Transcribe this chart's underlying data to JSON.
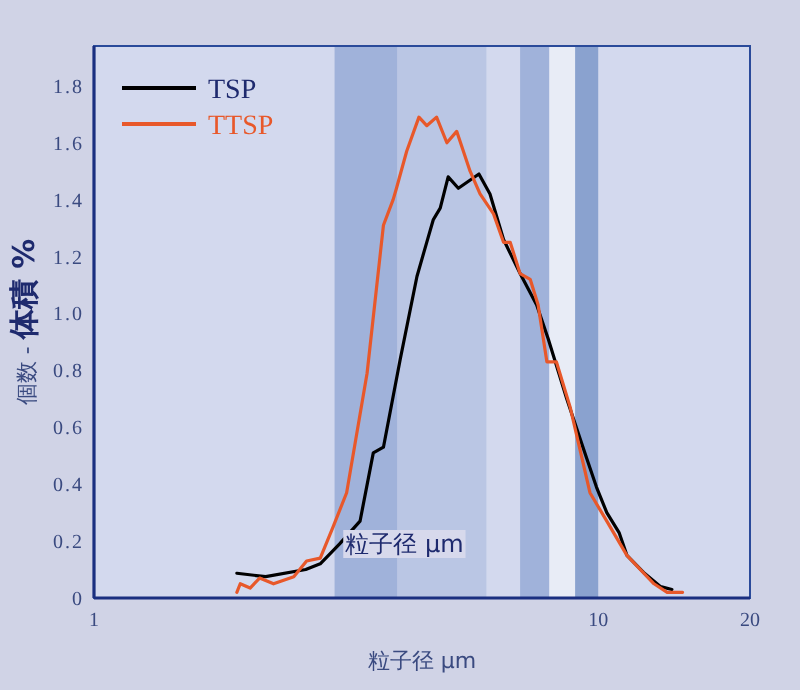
{
  "chart_data": {
    "type": "line",
    "xlabel": "粒子径 μm",
    "ylabel": "個数 - **体積 %**",
    "log": "x",
    "xlim": [
      1,
      20
    ],
    "xticks": [
      1,
      10,
      20
    ],
    "ylim": [
      0,
      1.94
    ],
    "yticks": [
      0,
      0.2,
      0.4,
      0.6,
      0.8,
      {
        "value": 1,
        "label": "1.0"
      },
      1.2,
      1.4,
      1.6,
      1.8
    ],
    "legend": "top left",
    "grid": false,
    "marker": "none",
    "line_style": "solid",
    "annotations": [
      "粒子径 μm"
    ],
    "bands": [
      {
        "axis": "x",
        "from": 3,
        "to": 4,
        "color": "#a0b2da"
      },
      {
        "axis": "x",
        "from": 4,
        "to": 6,
        "color": "#bac6e4"
      },
      {
        "axis": "x",
        "from": 7,
        "to": 8,
        "color": "#a0b2da"
      },
      {
        "axis": "x",
        "from": 8,
        "to": 9,
        "color": "#e8ecf6"
      },
      {
        "axis": "x",
        "from": 9,
        "to": 10,
        "color": "#8aa2cf"
      }
    ],
    "series": [
      {
        "name": "TSP",
        "color": "#000000",
        "x": [
          1.92,
          2.19,
          2.63,
          2.81,
          3.07,
          3.37,
          3.58,
          3.75,
          4.05,
          4.37,
          4.57,
          4.71,
          4.86,
          5.04,
          5.28,
          5.8,
          6.1,
          6.49,
          7.0,
          7.55,
          7.96,
          8.66,
          9.49,
          9.92,
          10.4,
          11.0,
          11.4,
          12.3,
          13.3,
          14.0
        ],
        "values": [
          0.087,
          0.075,
          0.1,
          0.12,
          0.19,
          0.27,
          0.51,
          0.53,
          0.84,
          1.13,
          1.25,
          1.33,
          1.37,
          1.48,
          1.44,
          1.49,
          1.42,
          1.26,
          1.14,
          1.03,
          0.91,
          0.7,
          0.49,
          0.39,
          0.3,
          0.23,
          0.15,
          0.09,
          0.04,
          0.03
        ]
      },
      {
        "name": "TTSP",
        "color": "#e8582a",
        "x": [
          1.92,
          1.95,
          2.04,
          2.13,
          2.27,
          2.49,
          2.64,
          2.81,
          2.98,
          3.17,
          3.48,
          3.75,
          3.92,
          3.98,
          4.17,
          4.41,
          4.57,
          4.78,
          5.01,
          5.24,
          5.57,
          5.83,
          6.2,
          6.49,
          6.69,
          7.0,
          7.33,
          7.6,
          7.91,
          8.26,
          8.8,
          9.63,
          10.4,
          11.4,
          12.9,
          13.7,
          14.7
        ],
        "values": [
          0.02,
          0.05,
          0.035,
          0.07,
          0.05,
          0.075,
          0.13,
          0.14,
          0.25,
          0.37,
          0.79,
          1.31,
          1.4,
          1.44,
          1.57,
          1.69,
          1.66,
          1.69,
          1.6,
          1.64,
          1.5,
          1.42,
          1.35,
          1.25,
          1.25,
          1.14,
          1.12,
          1.03,
          0.83,
          0.83,
          0.67,
          0.37,
          0.27,
          0.15,
          0.05,
          0.02,
          0.02
        ]
      }
    ]
  }
}
